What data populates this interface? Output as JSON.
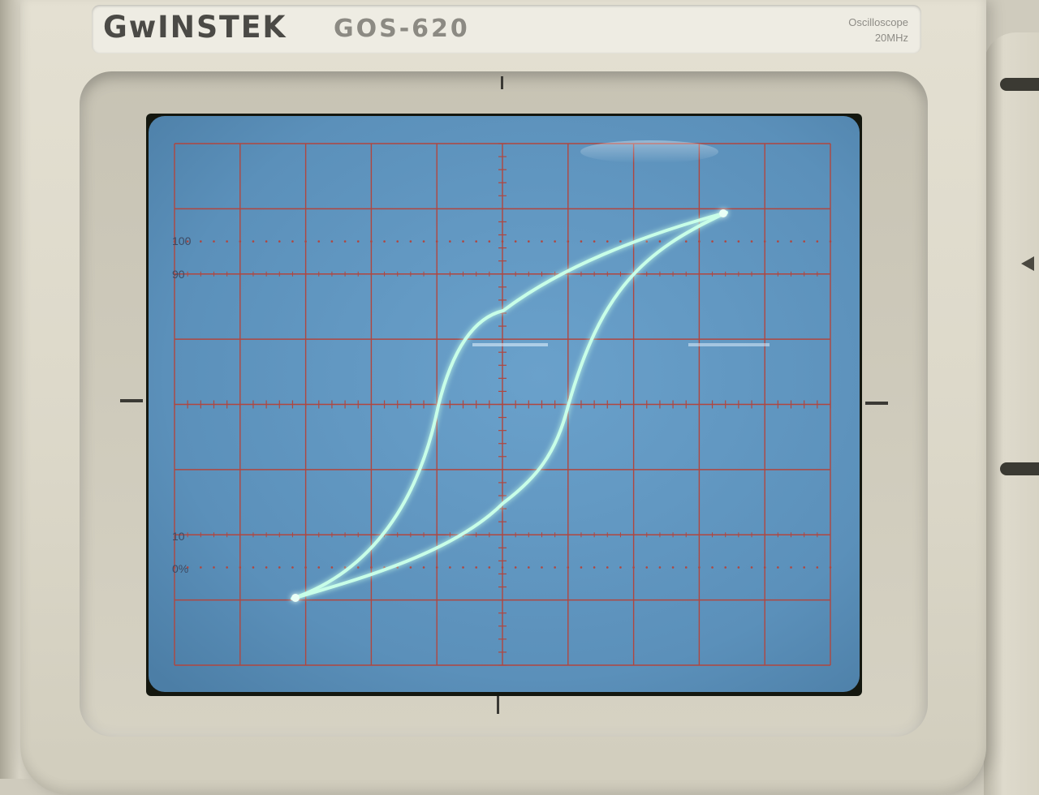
{
  "device": {
    "brand": "GwINSTEK",
    "model": "GOS-620",
    "type_label": "Oscilloscope",
    "bandwidth_label": "20MHz"
  },
  "graticule": {
    "labels": [
      "100",
      "90",
      "10",
      "0%"
    ],
    "major_divisions_x": 10,
    "major_divisions_y": 8,
    "grid_color": "#b0463f",
    "screen_color": "#5d93be"
  },
  "trace": {
    "shape": "hysteresis-loop",
    "color": "#c8ffe8"
  }
}
